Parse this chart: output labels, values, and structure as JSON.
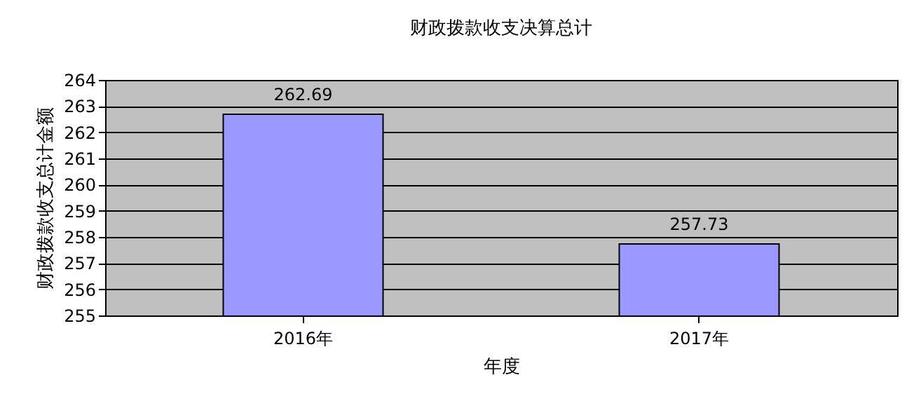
{
  "chart_data": {
    "type": "bar",
    "title": "财政拨款收支决算总计",
    "xlabel": "年度",
    "ylabel": "财政拨款收支总计金额",
    "categories": [
      "2016年",
      "2017年"
    ],
    "values": [
      262.69,
      257.73
    ],
    "color": "#9999ff",
    "ylim": [
      255,
      264
    ],
    "yticks": [
      255,
      256,
      257,
      258,
      259,
      260,
      261,
      262,
      263,
      264
    ],
    "grid": "y",
    "data_labels": true
  }
}
